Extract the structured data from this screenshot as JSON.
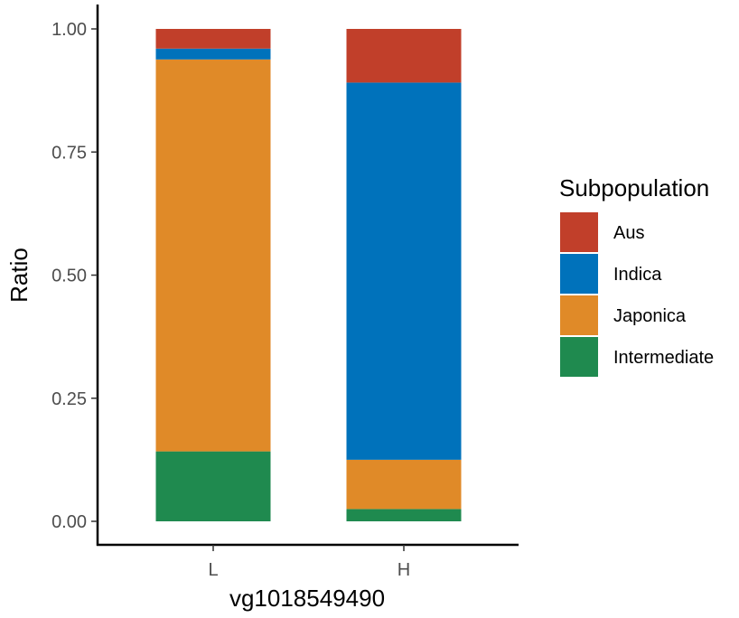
{
  "chart_data": {
    "type": "bar",
    "stacked": true,
    "categories": [
      "L",
      "H"
    ],
    "series": [
      {
        "name": "Intermediate",
        "color": "#1F8A4F",
        "values": [
          0.142,
          0.025
        ]
      },
      {
        "name": "Japonica",
        "color": "#E08A28",
        "values": [
          0.796,
          0.1
        ]
      },
      {
        "name": "Indica",
        "color": "#0072BB",
        "values": [
          0.022,
          0.766
        ]
      },
      {
        "name": "Aus",
        "color": "#C13F2A",
        "values": [
          0.04,
          0.109
        ]
      }
    ],
    "xlabel": "vg1018549490",
    "ylabel": "Ratio",
    "ylim": [
      0,
      1
    ],
    "yticks": [
      "0.00",
      "0.25",
      "0.50",
      "0.75",
      "1.00"
    ],
    "grid": false,
    "legend": {
      "title": "Subpopulation",
      "position": "right",
      "order": [
        "Aus",
        "Indica",
        "Japonica",
        "Intermediate"
      ]
    }
  }
}
